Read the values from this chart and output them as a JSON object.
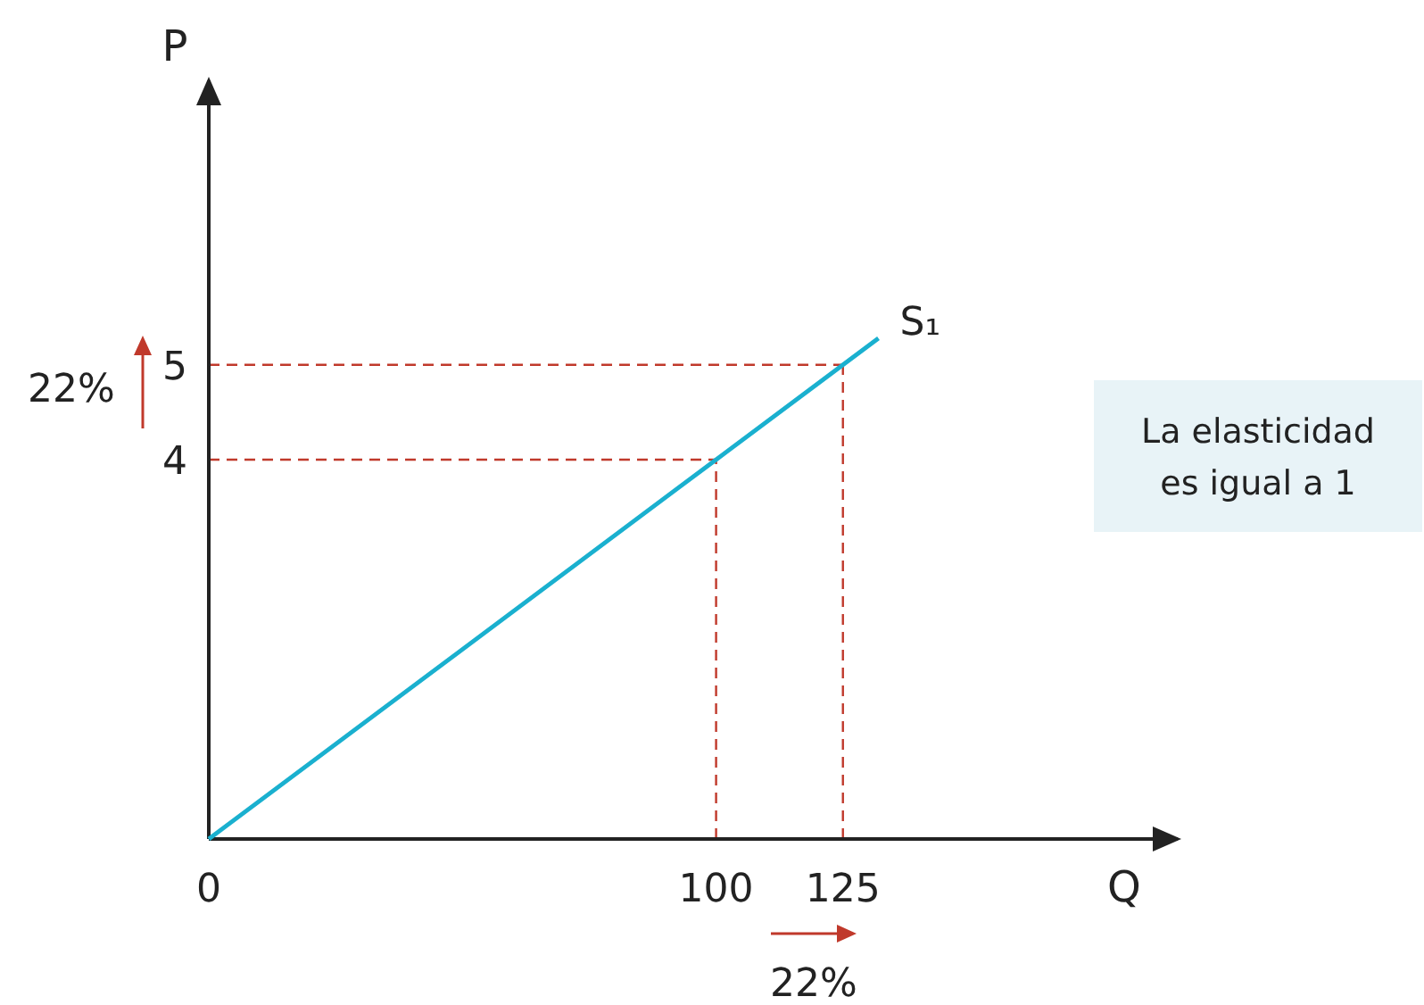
{
  "chart_data": {
    "type": "line",
    "xlabel": "Q",
    "ylabel": "P",
    "x": [
      0,
      100,
      125,
      132
    ],
    "series": [
      {
        "name": "S₁",
        "color": "#1ab0cf",
        "values": [
          0,
          4,
          5,
          5.28
        ]
      }
    ],
    "xlim": [
      0,
      191
    ],
    "ylim": [
      0,
      8
    ],
    "xticks": [
      0,
      100,
      125
    ],
    "yticks": [
      4,
      5
    ],
    "grid": false,
    "legend": false,
    "marker": "none",
    "line_style": "solid",
    "ref_lines": [
      {
        "axis": "x",
        "value": 100,
        "label": null,
        "color": "#c0392b",
        "line_style": "dashed"
      },
      {
        "axis": "x",
        "value": 125,
        "label": null,
        "color": "#c0392b",
        "line_style": "dashed"
      },
      {
        "axis": "y",
        "value": 4,
        "label": null,
        "color": "#c0392b",
        "line_style": "dashed"
      },
      {
        "axis": "y",
        "value": 5,
        "label": null,
        "color": "#c0392b",
        "line_style": "dashed"
      }
    ],
    "annotations": [
      "22%",
      "22%",
      "La elasticidad es igual a 1"
    ]
  }
}
